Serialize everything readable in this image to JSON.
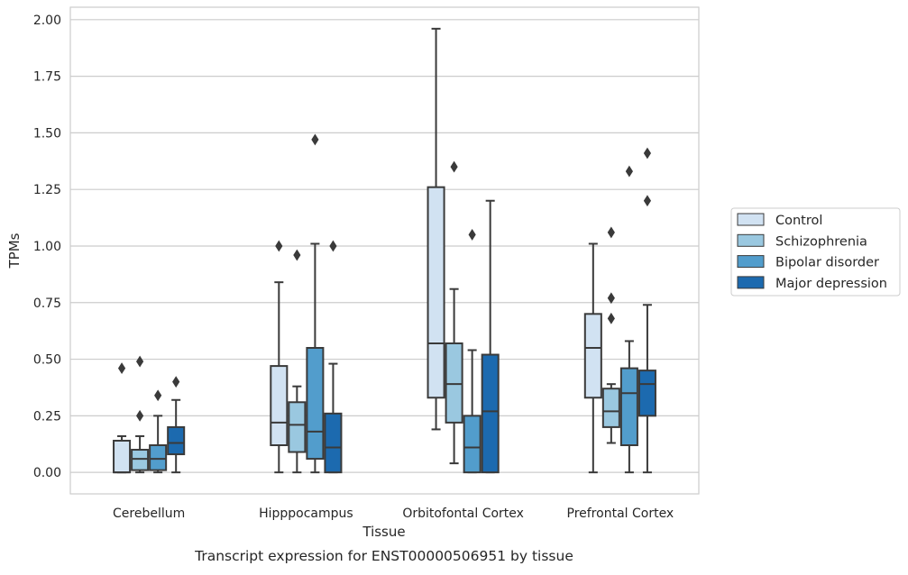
{
  "chart_data": {
    "type": "box",
    "title": "",
    "caption": "Transcript expression for ENST00000506951 by tissue",
    "xlabel": "Tissue",
    "ylabel": "TPMs",
    "ylim": [
      -0.095,
      2.055
    ],
    "yticks": [
      "0.00",
      "0.25",
      "0.50",
      "0.75",
      "1.00",
      "1.25",
      "1.50",
      "1.75",
      "2.00"
    ],
    "ytick_values": [
      0,
      0.25,
      0.5,
      0.75,
      1.0,
      1.25,
      1.5,
      1.75,
      2.0
    ],
    "grid": "horizontal",
    "legend_position": "right",
    "categories": [
      "Cerebellum",
      "Hipppocampus",
      "Orbitofontal Cortex",
      "Prefrontal Cortex"
    ],
    "series": [
      {
        "name": "Control",
        "color": "#d1e2f2",
        "boxes": [
          {
            "whislo": 0.0,
            "q1": 0.0,
            "med": 0.0,
            "q3": 0.14,
            "whishi": 0.16,
            "fliers": [
              0.46
            ]
          },
          {
            "whislo": 0.0,
            "q1": 0.12,
            "med": 0.22,
            "q3": 0.47,
            "whishi": 0.84,
            "fliers": [
              1.0
            ]
          },
          {
            "whislo": 0.19,
            "q1": 0.33,
            "med": 0.57,
            "q3": 1.26,
            "whishi": 1.96,
            "fliers": []
          },
          {
            "whislo": 0.0,
            "q1": 0.33,
            "med": 0.55,
            "q3": 0.7,
            "whishi": 1.01,
            "fliers": []
          }
        ]
      },
      {
        "name": "Schizophrenia",
        "color": "#9ac8e0",
        "boxes": [
          {
            "whislo": 0.0,
            "q1": 0.01,
            "med": 0.06,
            "q3": 0.1,
            "whishi": 0.16,
            "fliers": [
              0.25,
              0.49
            ]
          },
          {
            "whislo": 0.0,
            "q1": 0.09,
            "med": 0.21,
            "q3": 0.31,
            "whishi": 0.38,
            "fliers": [
              0.96
            ]
          },
          {
            "whislo": 0.04,
            "q1": 0.22,
            "med": 0.39,
            "q3": 0.57,
            "whishi": 0.81,
            "fliers": [
              1.35
            ]
          },
          {
            "whislo": 0.13,
            "q1": 0.2,
            "med": 0.27,
            "q3": 0.37,
            "whishi": 0.39,
            "fliers": [
              0.68,
              0.77,
              1.06
            ]
          }
        ]
      },
      {
        "name": "Bipolar disorder",
        "color": "#529dcc",
        "boxes": [
          {
            "whislo": 0.0,
            "q1": 0.01,
            "med": 0.06,
            "q3": 0.12,
            "whishi": 0.25,
            "fliers": [
              0.34
            ]
          },
          {
            "whislo": 0.0,
            "q1": 0.06,
            "med": 0.18,
            "q3": 0.55,
            "whishi": 1.01,
            "fliers": [
              1.47
            ]
          },
          {
            "whislo": 0.0,
            "q1": 0.0,
            "med": 0.11,
            "q3": 0.25,
            "whishi": 0.54,
            "fliers": [
              1.05
            ]
          },
          {
            "whislo": 0.0,
            "q1": 0.12,
            "med": 0.35,
            "q3": 0.46,
            "whishi": 0.58,
            "fliers": [
              1.33
            ]
          }
        ]
      },
      {
        "name": "Major depression",
        "color": "#1c6aaf",
        "boxes": [
          {
            "whislo": 0.0,
            "q1": 0.08,
            "med": 0.13,
            "q3": 0.2,
            "whishi": 0.32,
            "fliers": [
              0.4
            ]
          },
          {
            "whislo": 0.0,
            "q1": 0.0,
            "med": 0.11,
            "q3": 0.26,
            "whishi": 0.48,
            "fliers": [
              1.0
            ]
          },
          {
            "whislo": 0.0,
            "q1": 0.0,
            "med": 0.27,
            "q3": 0.52,
            "whishi": 1.2,
            "fliers": []
          },
          {
            "whislo": 0.0,
            "q1": 0.25,
            "med": 0.39,
            "q3": 0.45,
            "whishi": 0.74,
            "fliers": [
              1.2,
              1.41
            ]
          }
        ]
      }
    ]
  }
}
